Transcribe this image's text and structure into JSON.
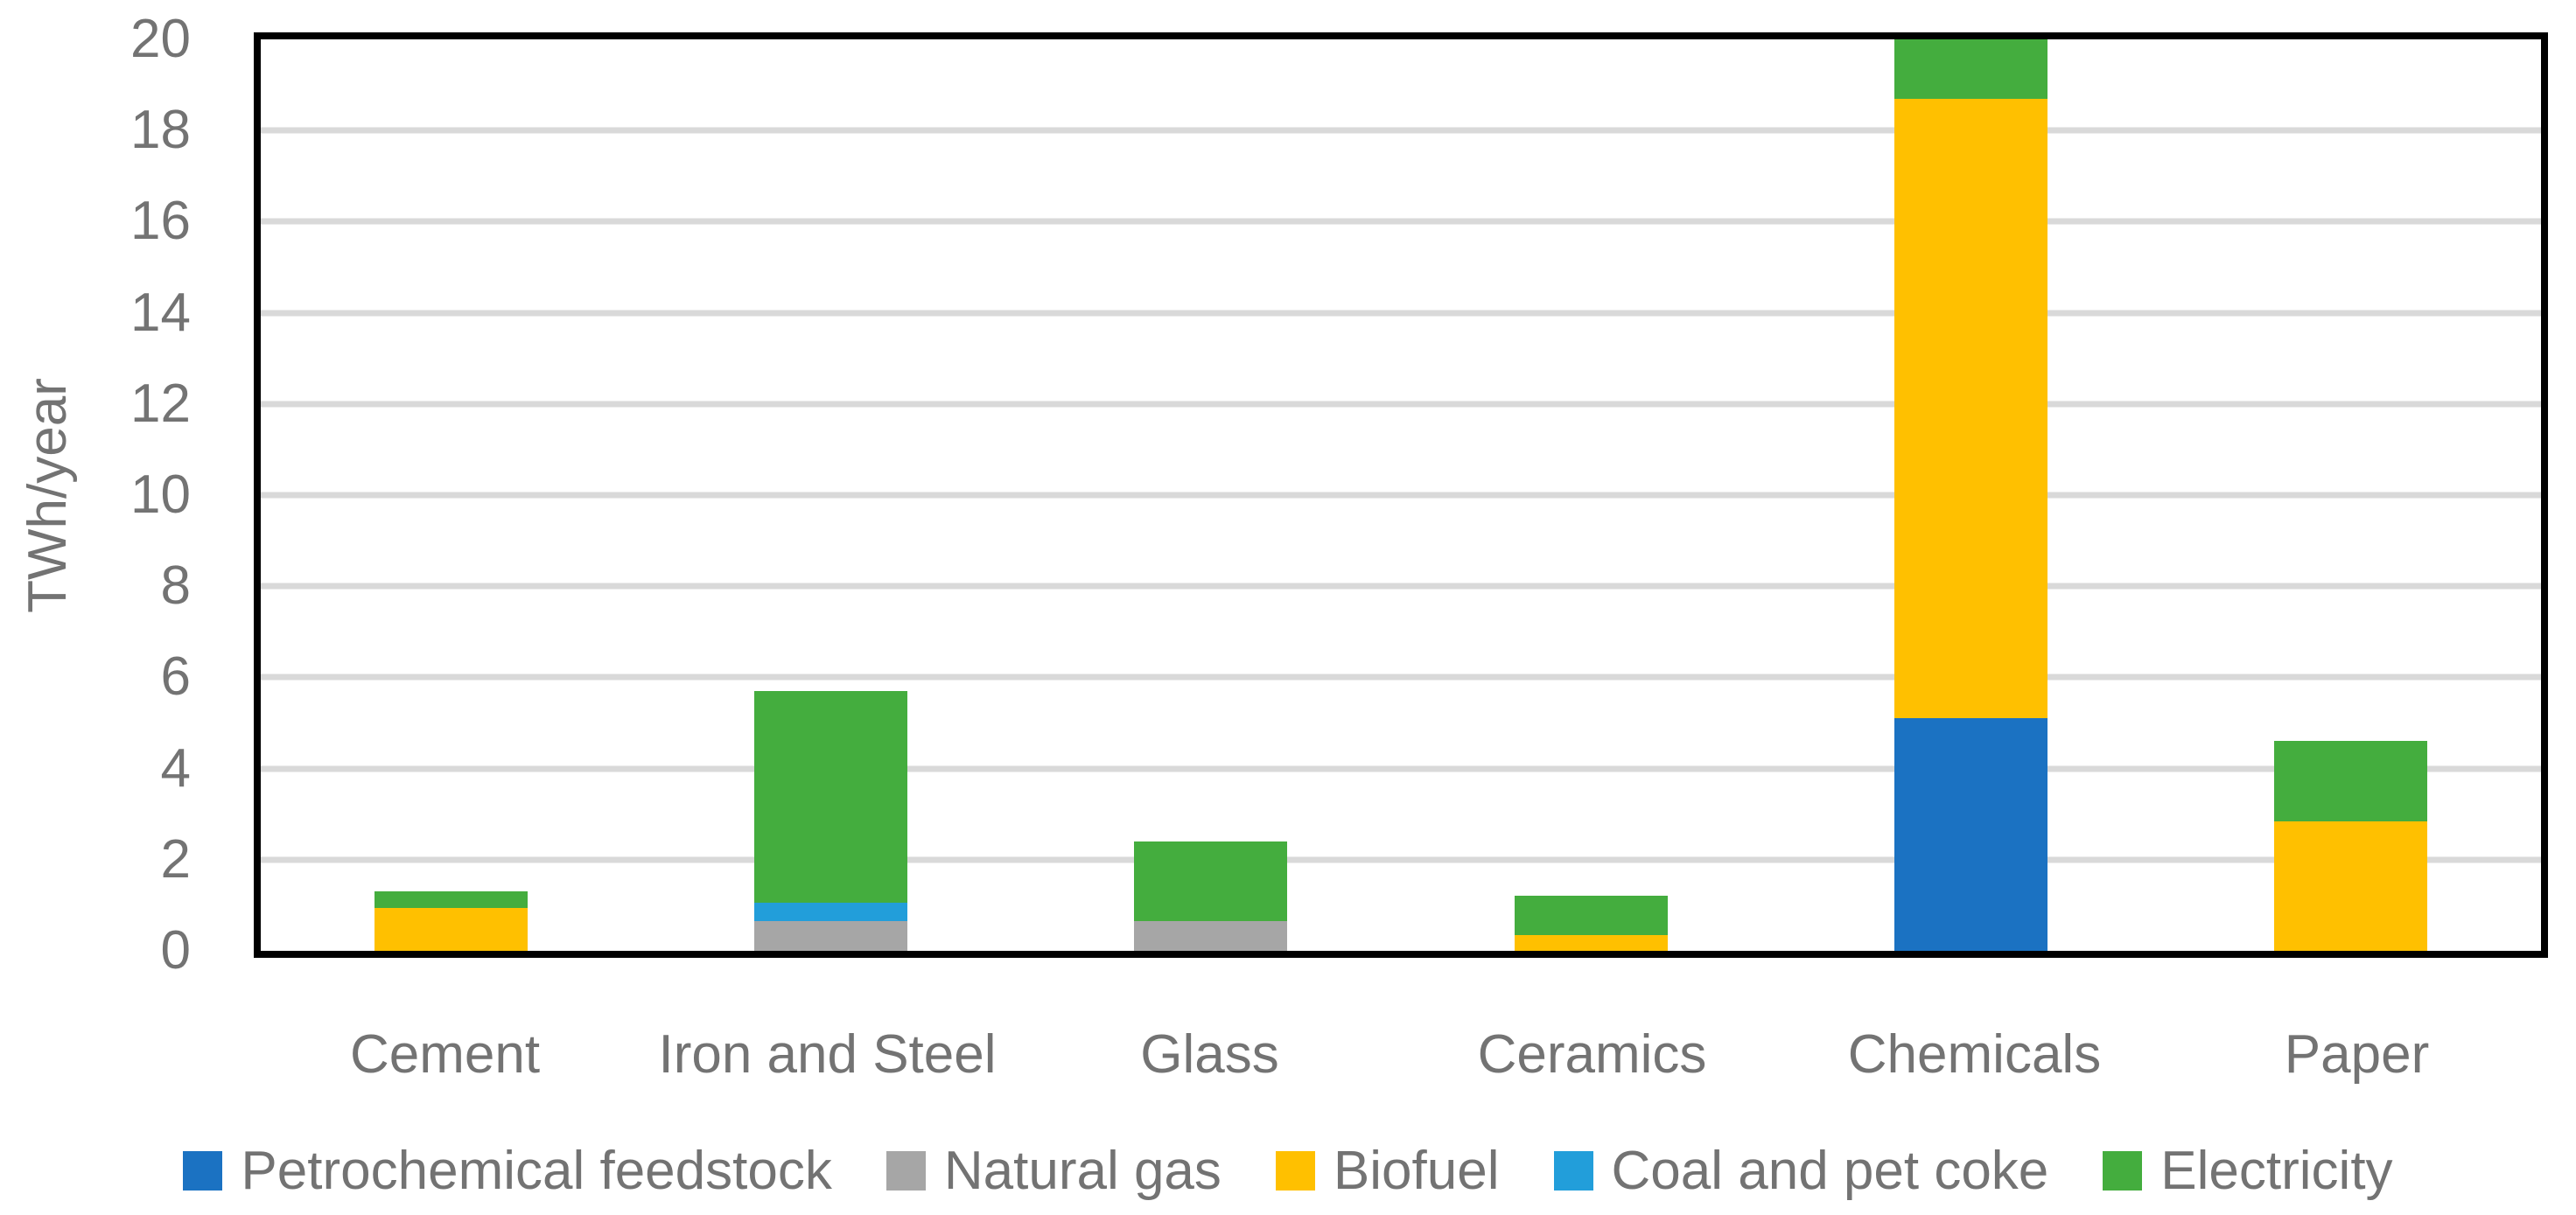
{
  "page": {
    "background": "#ffffff",
    "axis_text_color": "#737373",
    "gridline_color": "#D9D9D9",
    "plot_border_color": "#000000"
  },
  "chart_data": {
    "type": "bar",
    "stacked": true,
    "title": "",
    "xlabel": "",
    "ylabel": "TWh/year",
    "ylim": [
      0,
      20
    ],
    "yticks": [
      0,
      2,
      4,
      6,
      8,
      10,
      12,
      14,
      16,
      18,
      20
    ],
    "grid": true,
    "legend_position": "bottom",
    "categories": [
      "Cement",
      "Iron and Steel",
      "Glass",
      "Ceramics",
      "Chemicals",
      "Paper"
    ],
    "series": [
      {
        "name": "Petrochemical feedstock",
        "color": "#1B72C2",
        "values": [
          0,
          0,
          0,
          0,
          5.1,
          0
        ]
      },
      {
        "name": "Natural gas",
        "color": "#A6A6A6",
        "values": [
          0,
          0.65,
          0.65,
          0,
          0,
          0
        ]
      },
      {
        "name": "Biofuel",
        "color": "#FFC000",
        "values": [
          0.95,
          0,
          0,
          0.35,
          13.6,
          2.85
        ]
      },
      {
        "name": "Coal and pet coke",
        "color": "#229EDA",
        "values": [
          0,
          0.4,
          0,
          0,
          0,
          0
        ]
      },
      {
        "name": "Electricity",
        "color": "#44AD3E",
        "values": [
          0.35,
          4.65,
          1.75,
          0.85,
          1.3,
          1.75
        ]
      }
    ],
    "totals": [
      1.3,
      5.7,
      2.4,
      1.2,
      20.0,
      4.6
    ]
  }
}
